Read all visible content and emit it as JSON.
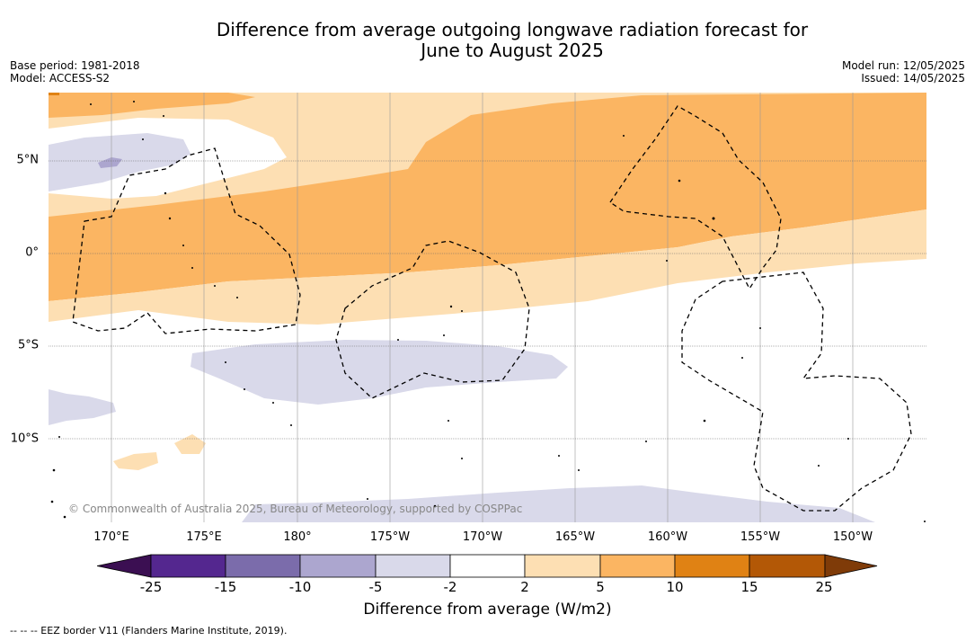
{
  "title": {
    "line1": "Difference from average outgoing longwave radiation forecast for",
    "line2": "June to August 2025"
  },
  "meta_left": {
    "base_period": "Base period: 1981-2018",
    "model": "Model: ACCESS-S2"
  },
  "meta_right": {
    "model_run": "Model run: 12/05/2025",
    "issued": "Issued: 14/05/2025"
  },
  "latitude_labels": [
    "5°N",
    "0°",
    "5°S",
    "10°S"
  ],
  "longitude_labels": [
    "170°E",
    "175°E",
    "180°",
    "175°W",
    "170°W",
    "165°W",
    "160°W",
    "155°W",
    "150°W"
  ],
  "copyright": "© Commonwealth of Australia 2025, Bureau of Meteorology, supported by COSPPac",
  "colorbar": {
    "ticks": [
      "-25",
      "-15",
      "-10",
      "-5",
      "-2",
      "2",
      "5",
      "10",
      "15",
      "25"
    ],
    "colors": [
      "#3b0f52",
      "#54278f",
      "#7b6cab",
      "#aca6cf",
      "#d9d9ea",
      "#ffffff",
      "#fddfb3",
      "#fbb562",
      "#e08214",
      "#b35806",
      "#7f3b08"
    ],
    "label": "Difference from average (W/m2)"
  },
  "eez_legend": "--  --  -- EEZ border V11 (Flanders Marine Institute, 2019)."
}
